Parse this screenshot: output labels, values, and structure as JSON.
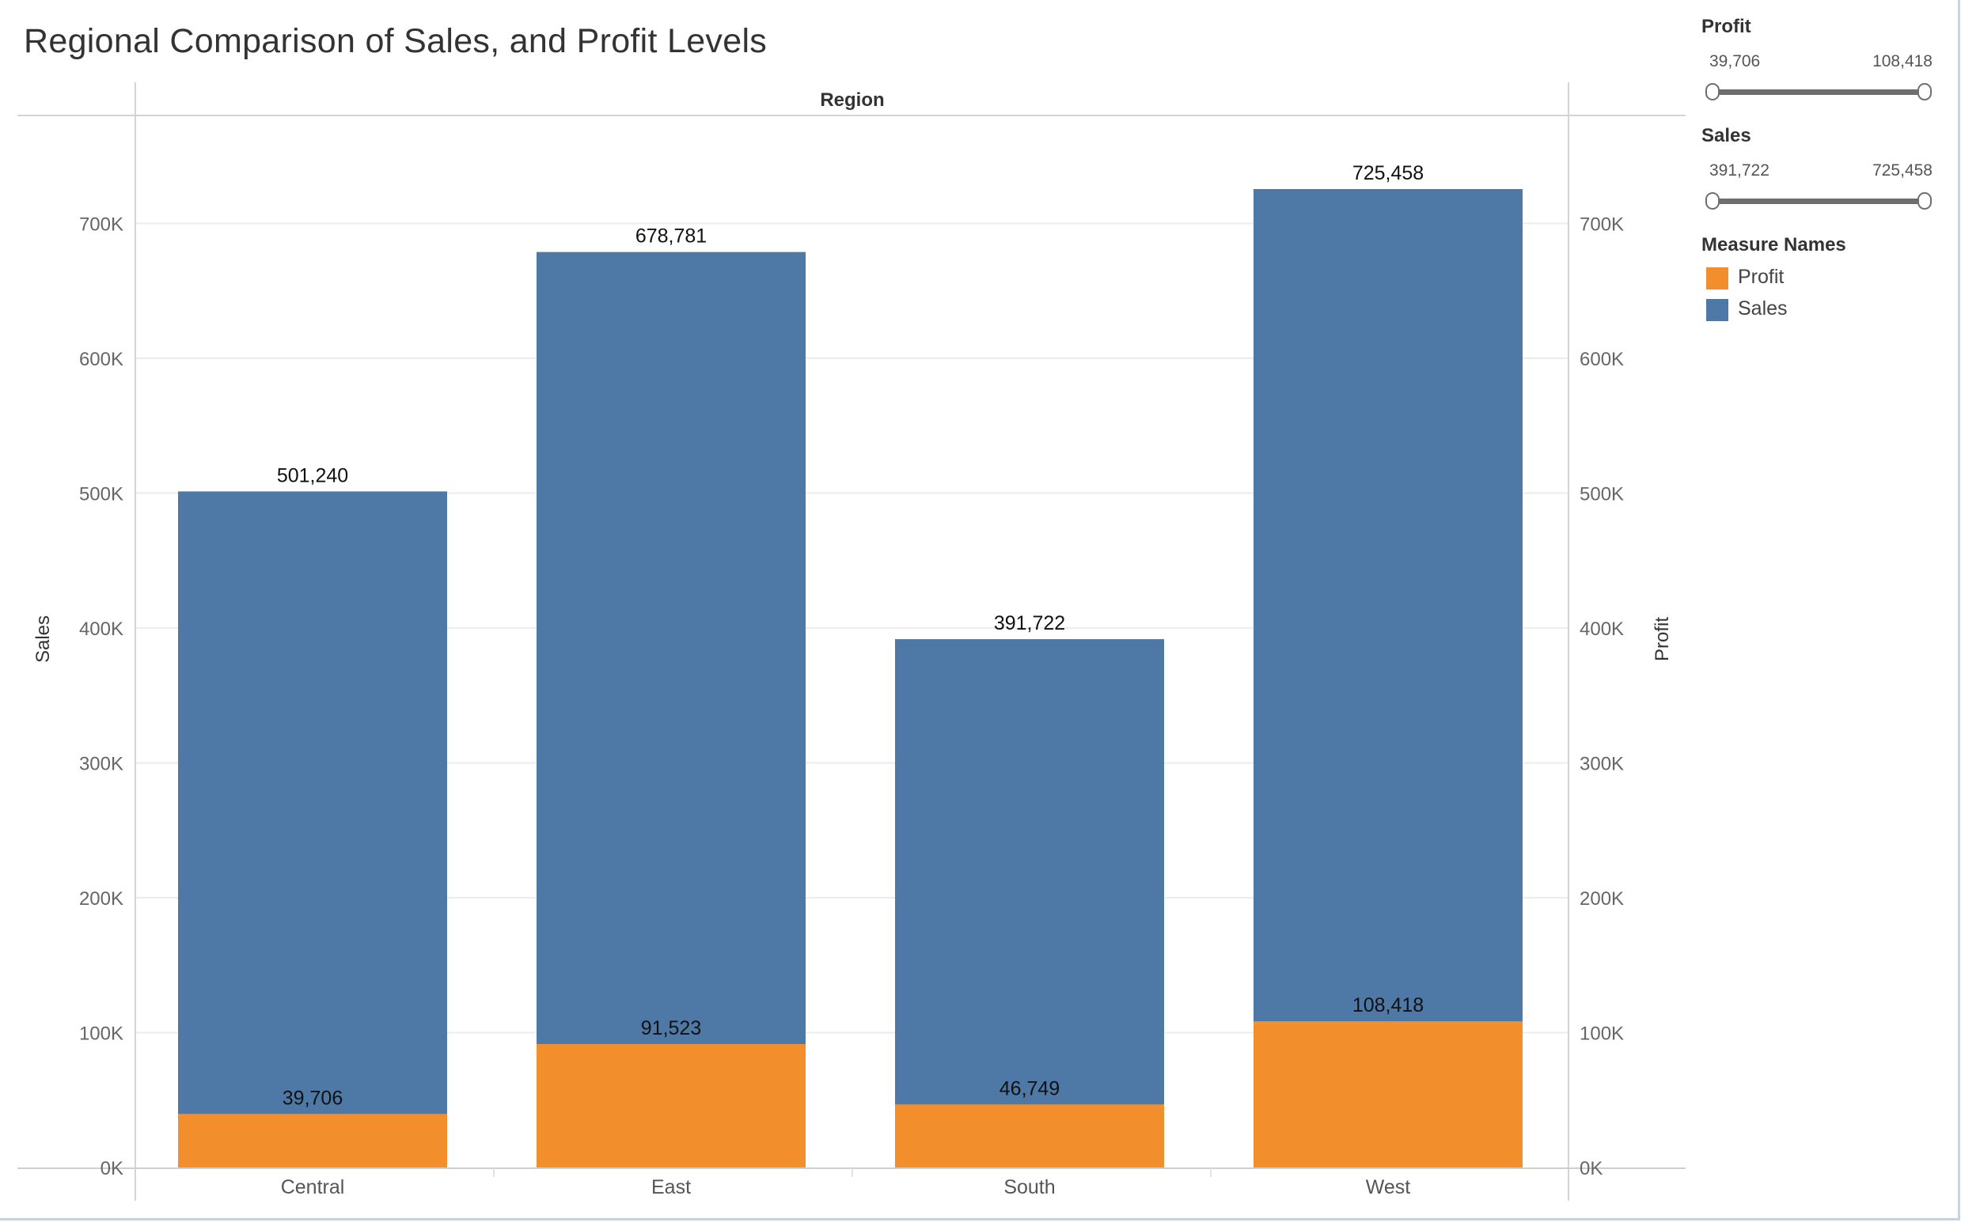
{
  "title": "Regional Comparison of Sales, and Profit Levels",
  "filters": [
    {
      "title": "Profit",
      "min": "39,706",
      "max": "108,418"
    },
    {
      "title": "Sales",
      "min": "391,722",
      "max": "725,458"
    }
  ],
  "legend": {
    "title": "Measure Names",
    "items": [
      {
        "label": "Profit",
        "color": "#f28e2b"
      },
      {
        "label": "Sales",
        "color": "#4e79a7"
      }
    ]
  },
  "chart_data": {
    "type": "bar",
    "header": "Region",
    "categories": [
      "Central",
      "East",
      "South",
      "West"
    ],
    "series": [
      {
        "name": "Sales",
        "color": "#4e79a7",
        "values": [
          501240,
          678781,
          391722,
          725458
        ],
        "labels": [
          "501,240",
          "678,781",
          "391,722",
          "725,458"
        ]
      },
      {
        "name": "Profit",
        "color": "#f28e2b",
        "values": [
          39706,
          91523,
          46749,
          108418
        ],
        "labels": [
          "39,706",
          "91,523",
          "46,749",
          "108,418"
        ]
      }
    ],
    "ylabel": "Sales",
    "y2label": "Profit",
    "ylim": [
      0,
      780000
    ],
    "yticks": [
      0,
      100000,
      200000,
      300000,
      400000,
      500000,
      600000,
      700000
    ],
    "yticklabels": [
      "0K",
      "100K",
      "200K",
      "300K",
      "400K",
      "500K",
      "600K",
      "700K"
    ],
    "grid": true,
    "legend_position": "right"
  }
}
